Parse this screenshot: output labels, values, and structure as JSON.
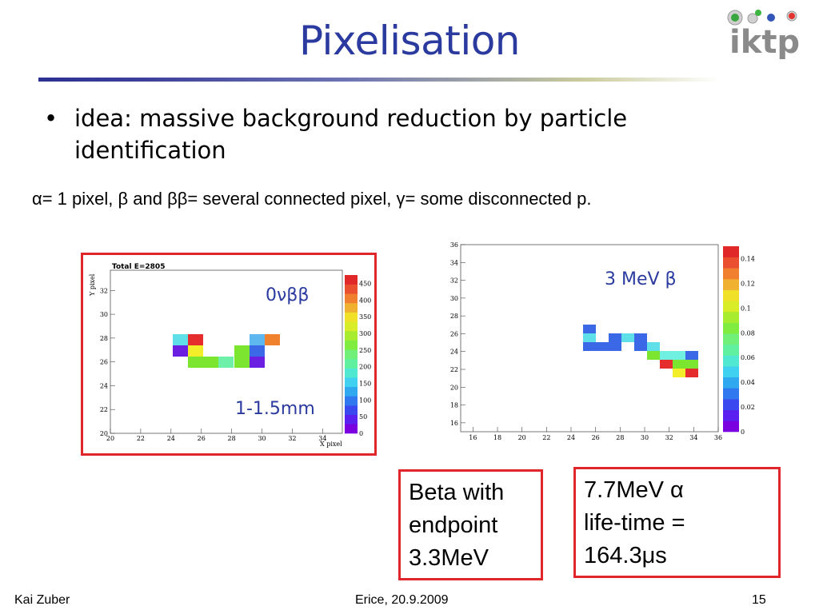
{
  "title": "Pixelisation",
  "bullet": "idea: massive background reduction by particle identification",
  "caption": "α= 1 pixel, β and ββ= several connected pixel, γ= some disconnected p.",
  "logo_text": "iktp",
  "plot_left": {
    "title": "Total E=2805",
    "ylabel": "Y pixel",
    "xlabel": "X pixel",
    "x_ticks": [
      "20",
      "22",
      "24",
      "26",
      "28",
      "30",
      "32",
      "34"
    ],
    "y_ticks": [
      "20",
      "22",
      "24",
      "26",
      "28",
      "30",
      "32"
    ],
    "colorbar_ticks": [
      "0",
      "50",
      "100",
      "150",
      "200",
      "250",
      "300",
      "350",
      "400",
      "450"
    ],
    "annotation_label": "0νββ",
    "scale_label": "1-1.5mm"
  },
  "plot_right": {
    "x_ticks": [
      "16",
      "18",
      "20",
      "22",
      "24",
      "26",
      "28",
      "30",
      "32",
      "34",
      "36"
    ],
    "y_ticks": [
      "16",
      "18",
      "20",
      "22",
      "24",
      "26",
      "28",
      "30",
      "32",
      "34",
      "36"
    ],
    "colorbar_ticks": [
      "0",
      "0.02",
      "0.04",
      "0.06",
      "0.08",
      "0.1",
      "0.12",
      "0.14"
    ],
    "annotation_label": "3 MeV β"
  },
  "box_beta": {
    "lines": [
      "Beta with",
      "endpoint",
      "3.3MeV"
    ]
  },
  "box_alpha": {
    "lines": [
      "7.7MeV α",
      "life-time =",
      "164.3μs"
    ]
  },
  "footer": {
    "author": "Kai Zuber",
    "event": "Erice, 20.9.2009",
    "page": "15"
  },
  "colors": {
    "title": "#2b3a9e",
    "frame": "#e0262b",
    "label": "#2b3a9e"
  }
}
